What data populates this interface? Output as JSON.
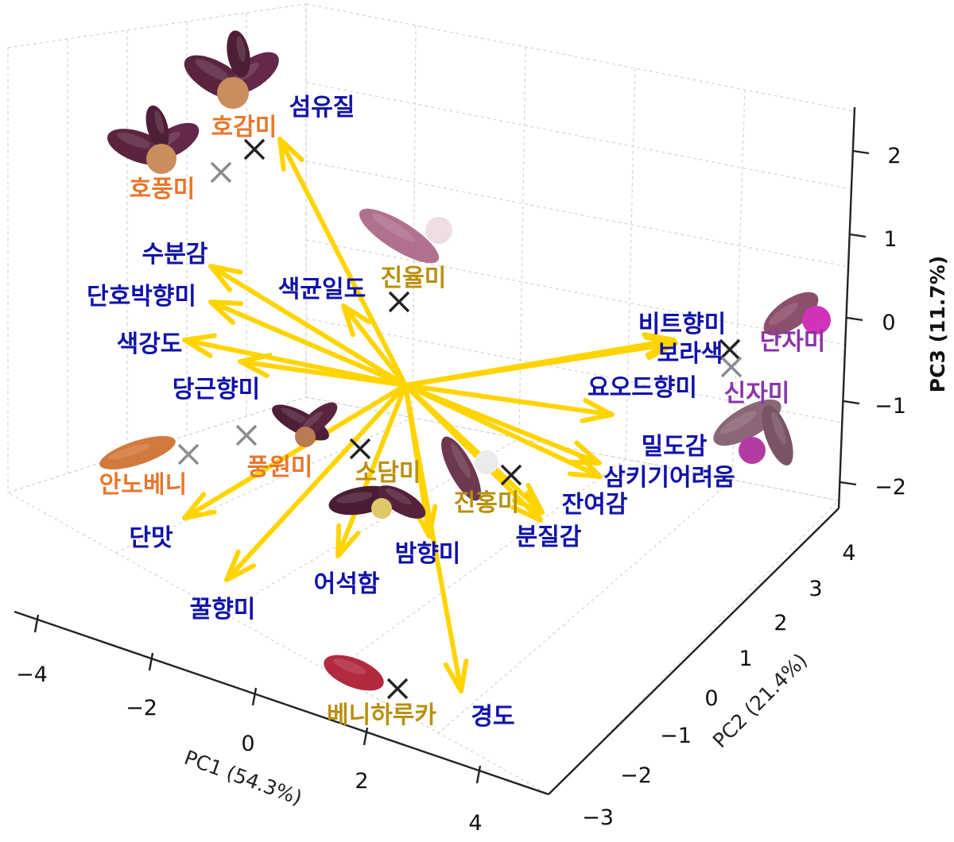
{
  "chart_data": {
    "type": "scatter",
    "subtype": "3d-pca-biplot",
    "axes": {
      "x": {
        "label": "PC1 (54.3%)",
        "ticks": [
          -4,
          -2,
          0,
          2,
          4
        ]
      },
      "y": {
        "label": "PC2 (21.4%)",
        "ticks": [
          -3,
          -2,
          -1,
          0,
          1,
          2,
          3,
          4
        ]
      },
      "z": {
        "label": "PC3 (11.7%)",
        "ticks": [
          -2,
          -1,
          0,
          1,
          2
        ]
      }
    },
    "grid": true,
    "colors": {
      "vector": "#ffd400",
      "attribute_label": "#1111aa",
      "group_orange": "#e8762c",
      "group_gold": "#b8900f",
      "group_purple": "#8a35a8",
      "marker_dark": "#222222",
      "marker_light": "#8c8c8c"
    },
    "cultivars": [
      {
        "name": "호감미",
        "group": "orange",
        "marker": "dark",
        "thumb": "potato-cut"
      },
      {
        "name": "호풍미",
        "group": "orange",
        "marker": "light",
        "thumb": "potato-cut"
      },
      {
        "name": "진율미",
        "group": "gold",
        "marker": "dark",
        "thumb": "potato-long-pink"
      },
      {
        "name": "단자미",
        "group": "purple",
        "marker": "dark",
        "thumb": "potato-purple"
      },
      {
        "name": "신자미",
        "group": "purple",
        "marker": "light",
        "thumb": "potato-purple-pair"
      },
      {
        "name": "안노베니",
        "group": "orange",
        "marker": "light",
        "thumb": "potato-orange"
      },
      {
        "name": "풍원미",
        "group": "orange",
        "marker": "light",
        "thumb": "potato-cut-small"
      },
      {
        "name": "소담미",
        "group": "gold",
        "marker": "dark",
        "thumb": "potato-cut-yellow"
      },
      {
        "name": "진홍미",
        "group": "gold",
        "marker": "dark",
        "thumb": "potato-pair-white"
      },
      {
        "name": "베니하루카",
        "group": "gold",
        "marker": "dark",
        "thumb": "potato-red"
      }
    ],
    "attributes": [
      "섬유질",
      "수분감",
      "단호박향미",
      "색균일도",
      "색강도",
      "당근향미",
      "비트향미",
      "보라색",
      "요오드향미",
      "밀도감",
      "삼키기어려움",
      "잔여감",
      "분질감",
      "밤향미",
      "어석함",
      "단맛",
      "꿀향미",
      "경도"
    ]
  }
}
